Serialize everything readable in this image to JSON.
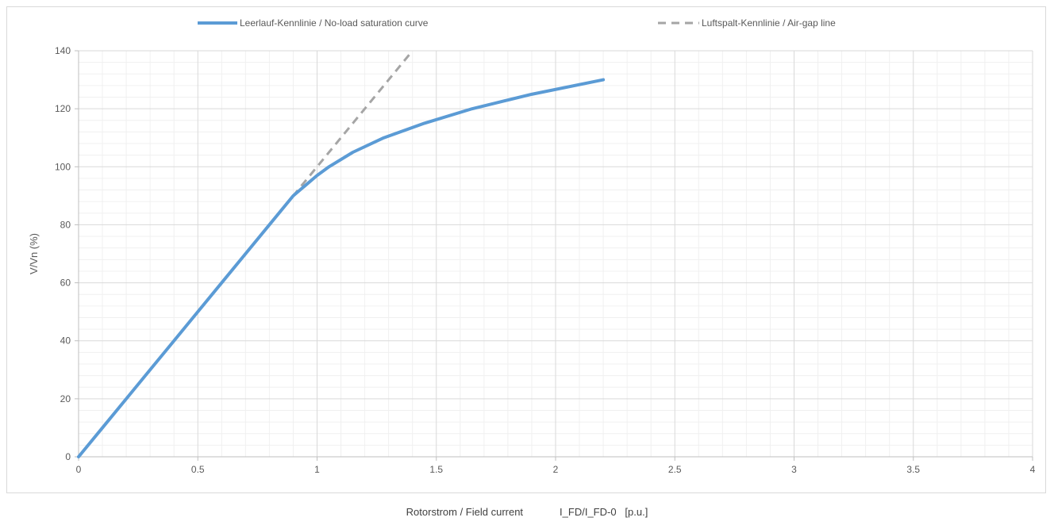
{
  "chart_data": {
    "type": "line",
    "xlabel_parts": [
      "Rotorstrom / Field current",
      "I_FD/I_FD-0   [p.u.]"
    ],
    "ylabel": "V/Vn (%)",
    "xlim": [
      0,
      4
    ],
    "ylim": [
      0,
      140
    ],
    "x_ticks": [
      "0",
      "0.5",
      "1",
      "1.5",
      "2",
      "2.5",
      "3",
      "3.5",
      "4"
    ],
    "y_ticks": [
      "0",
      "20",
      "40",
      "60",
      "80",
      "100",
      "120",
      "140"
    ],
    "grid": true,
    "legend_position": "top",
    "series": [
      {
        "name": "Leerlauf-Kennlinie / No-load saturation curve",
        "color": "#5b9bd5",
        "style": "solid",
        "x": [
          0,
          0.1,
          0.2,
          0.3,
          0.4,
          0.5,
          0.6,
          0.7,
          0.8,
          0.9,
          0.95,
          1.0,
          1.05,
          1.15,
          1.28,
          1.45,
          1.65,
          1.9,
          2.2
        ],
        "y": [
          0,
          10,
          20,
          30,
          40,
          50,
          60,
          70,
          80,
          90,
          93.5,
          97,
          100,
          105,
          110,
          115,
          120,
          125,
          130
        ]
      },
      {
        "name": "Luftspalt-Kennlinie / Air-gap line",
        "color": "#a5a5a5",
        "style": "dashed",
        "x": [
          0,
          1.4
        ],
        "y": [
          0,
          140
        ]
      }
    ]
  }
}
